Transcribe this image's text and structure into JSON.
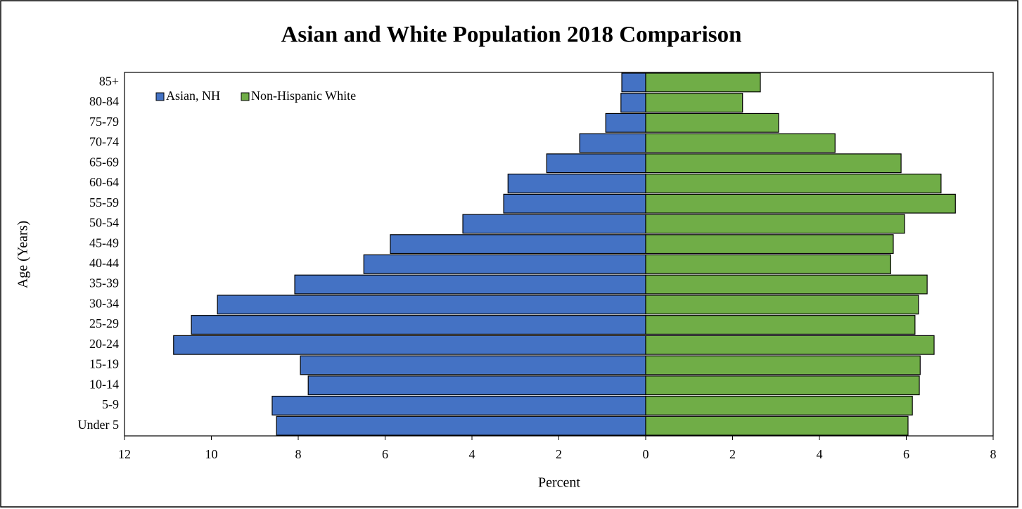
{
  "chart_data": {
    "type": "pyramid",
    "title": "Asian and White Population 2018 Comparison",
    "x_label": "Percent",
    "y_label": "Age (Years)",
    "categories": [
      "Under 5",
      "5-9",
      "10-14",
      "15-19",
      "20-24",
      "25-29",
      "30-34",
      "35-39",
      "40-44",
      "45-49",
      "50-54",
      "55-59",
      "60-64",
      "65-69",
      "70-74",
      "75-79",
      "80-84",
      "85+"
    ],
    "series": [
      {
        "name": "Asian, NH",
        "color": "#4472c4",
        "values": [
          -8.5,
          -8.6,
          -7.77,
          -7.95,
          -10.87,
          -10.46,
          -9.86,
          -8.08,
          -6.49,
          -5.88,
          -4.21,
          -3.27,
          -3.17,
          -2.28,
          -1.52,
          -0.92,
          -0.57,
          -0.55
        ]
      },
      {
        "name": "Non-Hispanic White",
        "color": "#70ad47",
        "values": [
          6.04,
          6.14,
          6.3,
          6.32,
          6.64,
          6.2,
          6.28,
          6.48,
          5.64,
          5.7,
          5.96,
          7.13,
          6.8,
          5.88,
          4.36,
          3.06,
          2.23,
          2.64
        ]
      }
    ],
    "xlim": [
      -12,
      8
    ],
    "xticks": [
      {
        "value": -12,
        "label": "12"
      },
      {
        "value": -10,
        "label": "10"
      },
      {
        "value": -8,
        "label": "8"
      },
      {
        "value": -6,
        "label": "6"
      },
      {
        "value": -4,
        "label": "4"
      },
      {
        "value": -2,
        "label": "2"
      },
      0,
      2,
      4,
      6,
      8
    ],
    "legend": "upper left",
    "grid": false
  }
}
